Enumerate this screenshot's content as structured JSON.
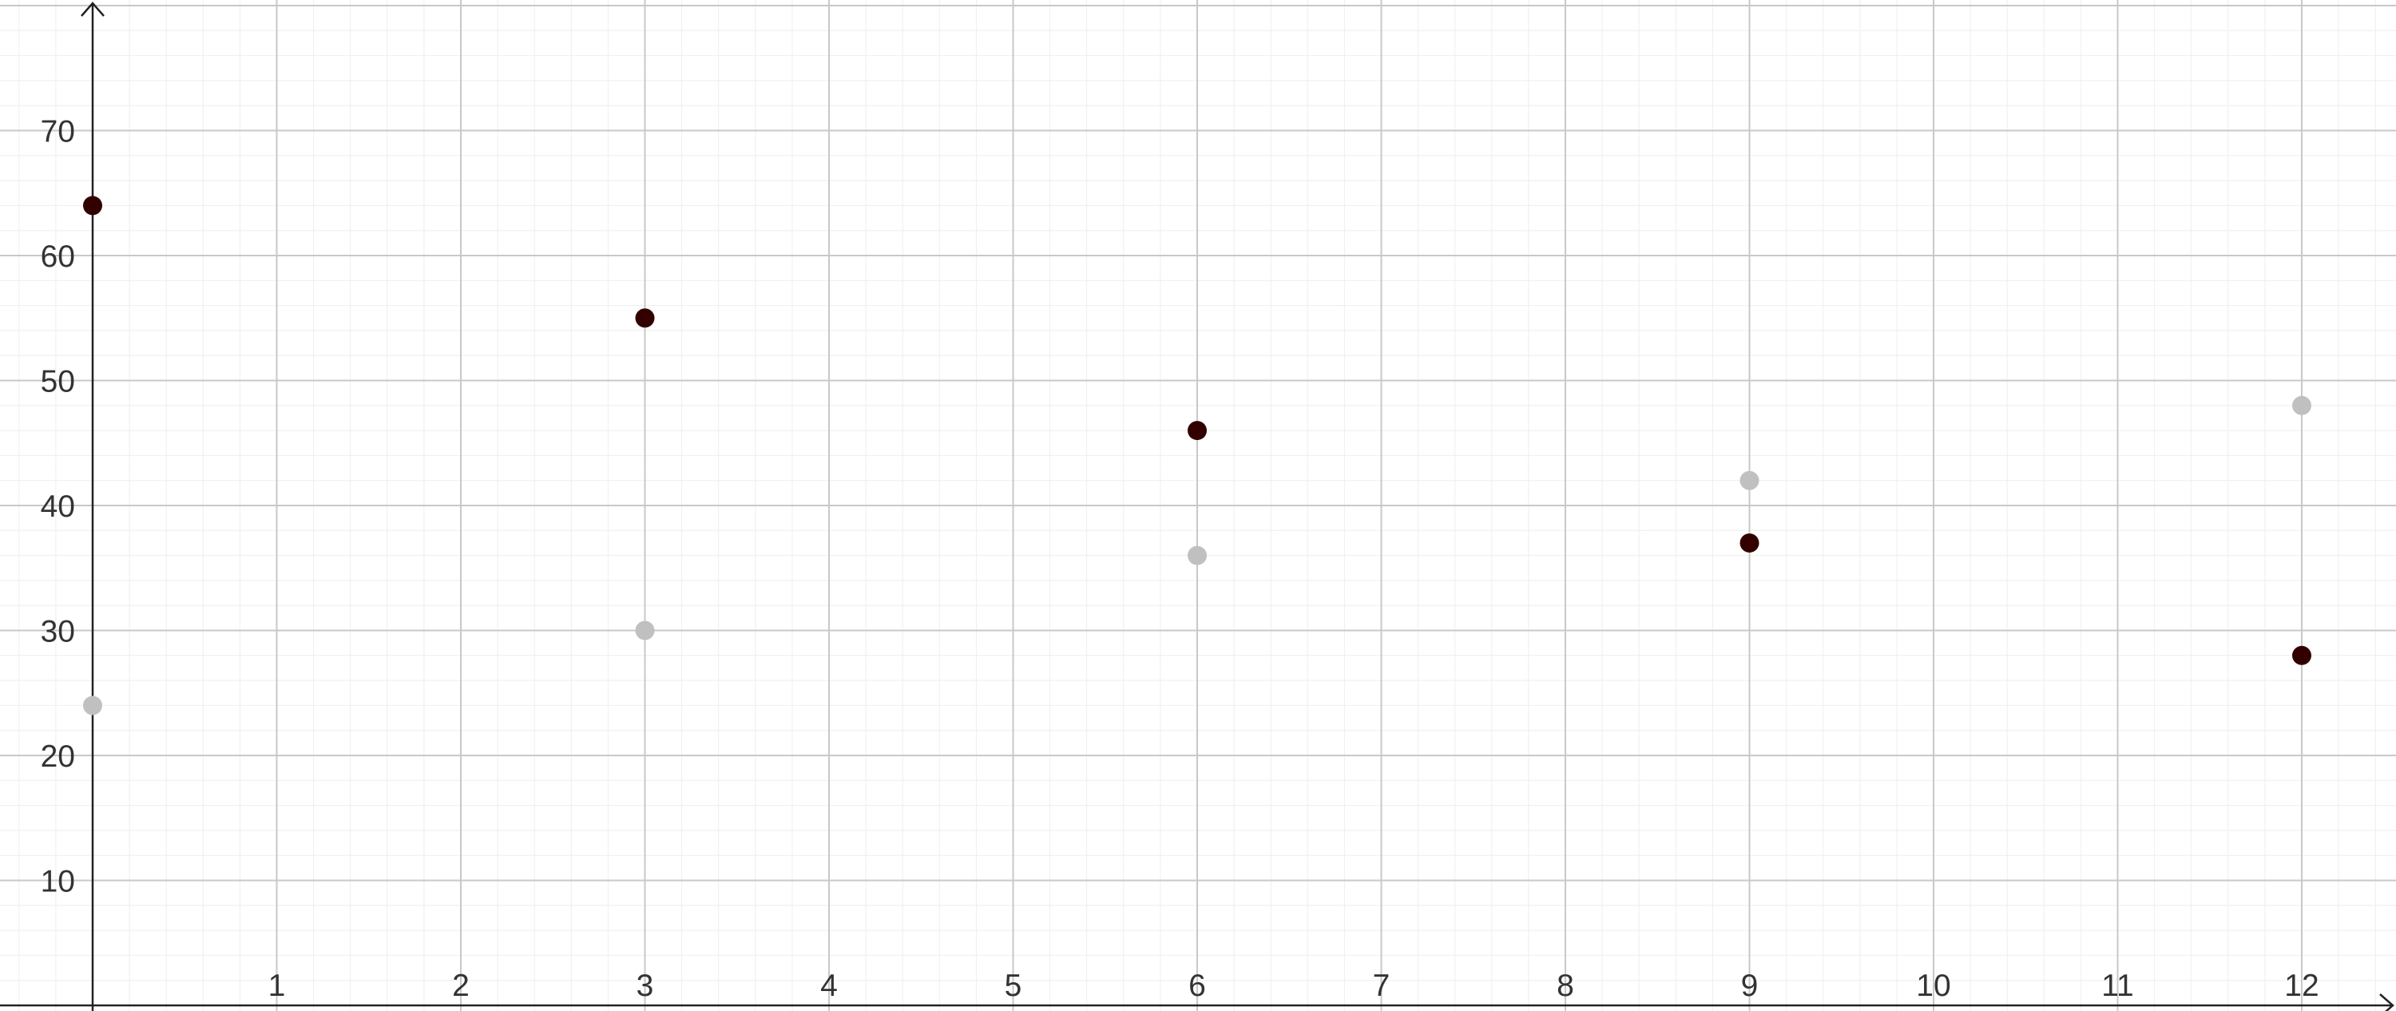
{
  "chart_data": {
    "type": "scatter",
    "title": "",
    "xlabel": "",
    "ylabel": "",
    "xlim": [
      -0.5,
      12.5
    ],
    "ylim": [
      -0.4,
      80
    ],
    "x_ticks": [
      1,
      2,
      3,
      4,
      5,
      6,
      7,
      8,
      9,
      10,
      11,
      12
    ],
    "y_ticks": [
      10,
      20,
      30,
      40,
      50,
      60,
      70
    ],
    "x_tick_labels": [
      "1",
      "2",
      "3",
      "4",
      "5",
      "6",
      "7",
      "8",
      "9",
      "10",
      "11",
      "12"
    ],
    "y_tick_labels": [
      "10",
      "20",
      "30",
      "40",
      "50",
      "60",
      "70"
    ],
    "grid": true,
    "minor_grid": true,
    "series": [
      {
        "color": "#330000",
        "points": [
          {
            "x": 0,
            "y": 64
          },
          {
            "x": 3,
            "y": 55
          },
          {
            "x": 6,
            "y": 46
          },
          {
            "x": 9,
            "y": 37
          },
          {
            "x": 12,
            "y": 28
          }
        ]
      },
      {
        "color": "#c0c0c0",
        "points": [
          {
            "x": 0,
            "y": 24
          },
          {
            "x": 3,
            "y": 30
          },
          {
            "x": 6,
            "y": 36
          },
          {
            "x": 9,
            "y": 42
          },
          {
            "x": 12,
            "y": 48
          }
        ]
      }
    ]
  }
}
